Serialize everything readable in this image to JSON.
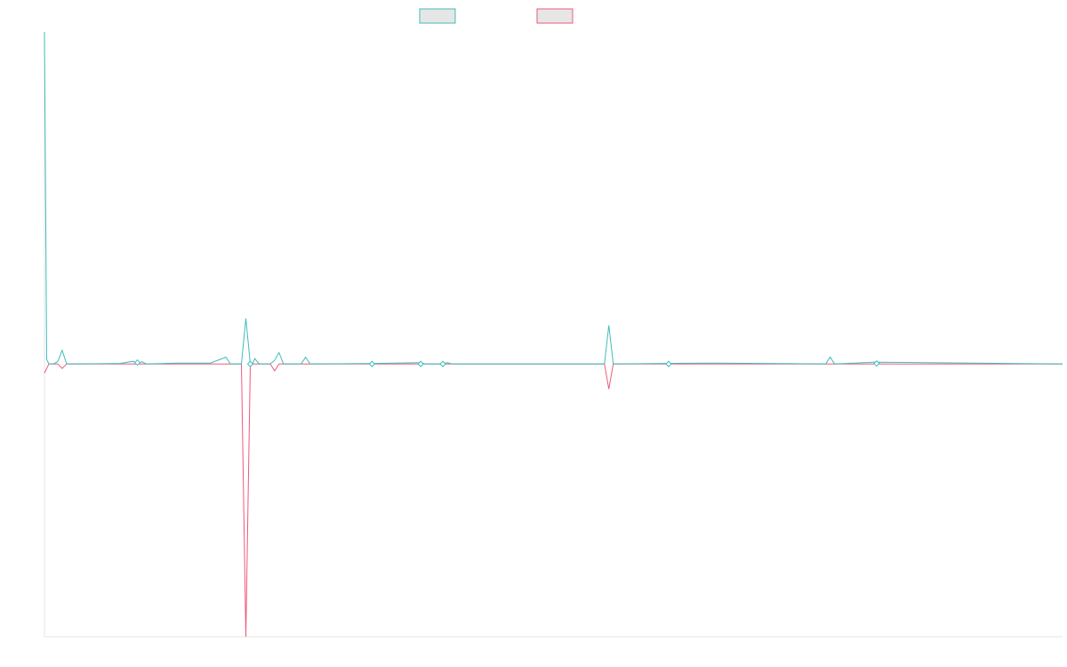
{
  "chart_data": {
    "type": "line",
    "title": "",
    "xlabel": "",
    "ylabel": "",
    "legend": {
      "position": "top-center",
      "show_labels": false
    },
    "grid": false,
    "xlim": [
      0,
      230
    ],
    "ylim": [
      -60,
      73
    ],
    "colors": {
      "series_a": "#3fbdbb",
      "series_b": "#f0587a",
      "legend_fill": "#e6e6e6",
      "axis": "#e6e6e6"
    },
    "series": [
      {
        "key": "series_a",
        "color": "#3fbdbb",
        "points": [
          [
            0,
            73
          ],
          [
            0.5,
            1
          ],
          [
            1,
            0
          ],
          [
            2,
            0
          ],
          [
            3,
            0.5
          ],
          [
            4,
            3
          ],
          [
            5,
            0
          ],
          [
            6,
            0
          ],
          [
            17,
            0.1
          ],
          [
            20,
            0.6
          ],
          [
            21,
            0
          ],
          [
            22,
            0.5
          ],
          [
            23,
            0
          ],
          [
            30,
            0.2
          ],
          [
            31.5,
            0.2
          ],
          [
            37.5,
            0.2
          ],
          [
            41,
            1.5
          ],
          [
            42,
            0
          ],
          [
            44.5,
            0
          ],
          [
            45.5,
            10
          ],
          [
            46.5,
            0
          ],
          [
            47,
            0
          ],
          [
            47.5,
            1.2
          ],
          [
            48.5,
            0
          ],
          [
            51,
            0
          ],
          [
            52,
            0.8
          ],
          [
            53,
            2.5
          ],
          [
            54,
            0
          ],
          [
            58,
            0
          ],
          [
            59,
            1.5
          ],
          [
            60,
            0
          ],
          [
            73.5,
            0.1
          ],
          [
            85,
            0.3
          ],
          [
            86,
            0
          ],
          [
            90,
            0
          ],
          [
            91,
            0.3
          ],
          [
            92,
            0
          ],
          [
            103,
            0
          ],
          [
            126.5,
            0
          ],
          [
            127.5,
            8.5
          ],
          [
            128.5,
            0
          ],
          [
            151,
            0.2
          ],
          [
            176.5,
            0
          ],
          [
            177.5,
            1.5
          ],
          [
            178.5,
            0
          ],
          [
            187.5,
            0.4
          ],
          [
            230,
            0
          ]
        ]
      },
      {
        "key": "series_b",
        "color": "#f0587a",
        "points": [
          [
            0,
            -2
          ],
          [
            1,
            0
          ],
          [
            3,
            0
          ],
          [
            4,
            -1
          ],
          [
            5,
            0
          ],
          [
            20,
            0
          ],
          [
            44.5,
            0
          ],
          [
            45.5,
            -60
          ],
          [
            46.5,
            0
          ],
          [
            51,
            0
          ],
          [
            52,
            -1.5
          ],
          [
            53,
            0
          ],
          [
            126.5,
            0
          ],
          [
            127.5,
            -5.5
          ],
          [
            128.5,
            0
          ],
          [
            230,
            0
          ]
        ]
      }
    ],
    "markers": [
      {
        "series": "series_a",
        "x": 21,
        "y": 0.3
      },
      {
        "series": "series_a",
        "x": 46.5,
        "y": 0
      },
      {
        "series": "series_a",
        "x": 74,
        "y": 0
      },
      {
        "series": "series_a",
        "x": 85,
        "y": 0
      },
      {
        "series": "series_a",
        "x": 90,
        "y": 0
      },
      {
        "series": "series_a",
        "x": 141,
        "y": 0
      },
      {
        "series": "series_a",
        "x": 188,
        "y": 0.1
      }
    ]
  }
}
